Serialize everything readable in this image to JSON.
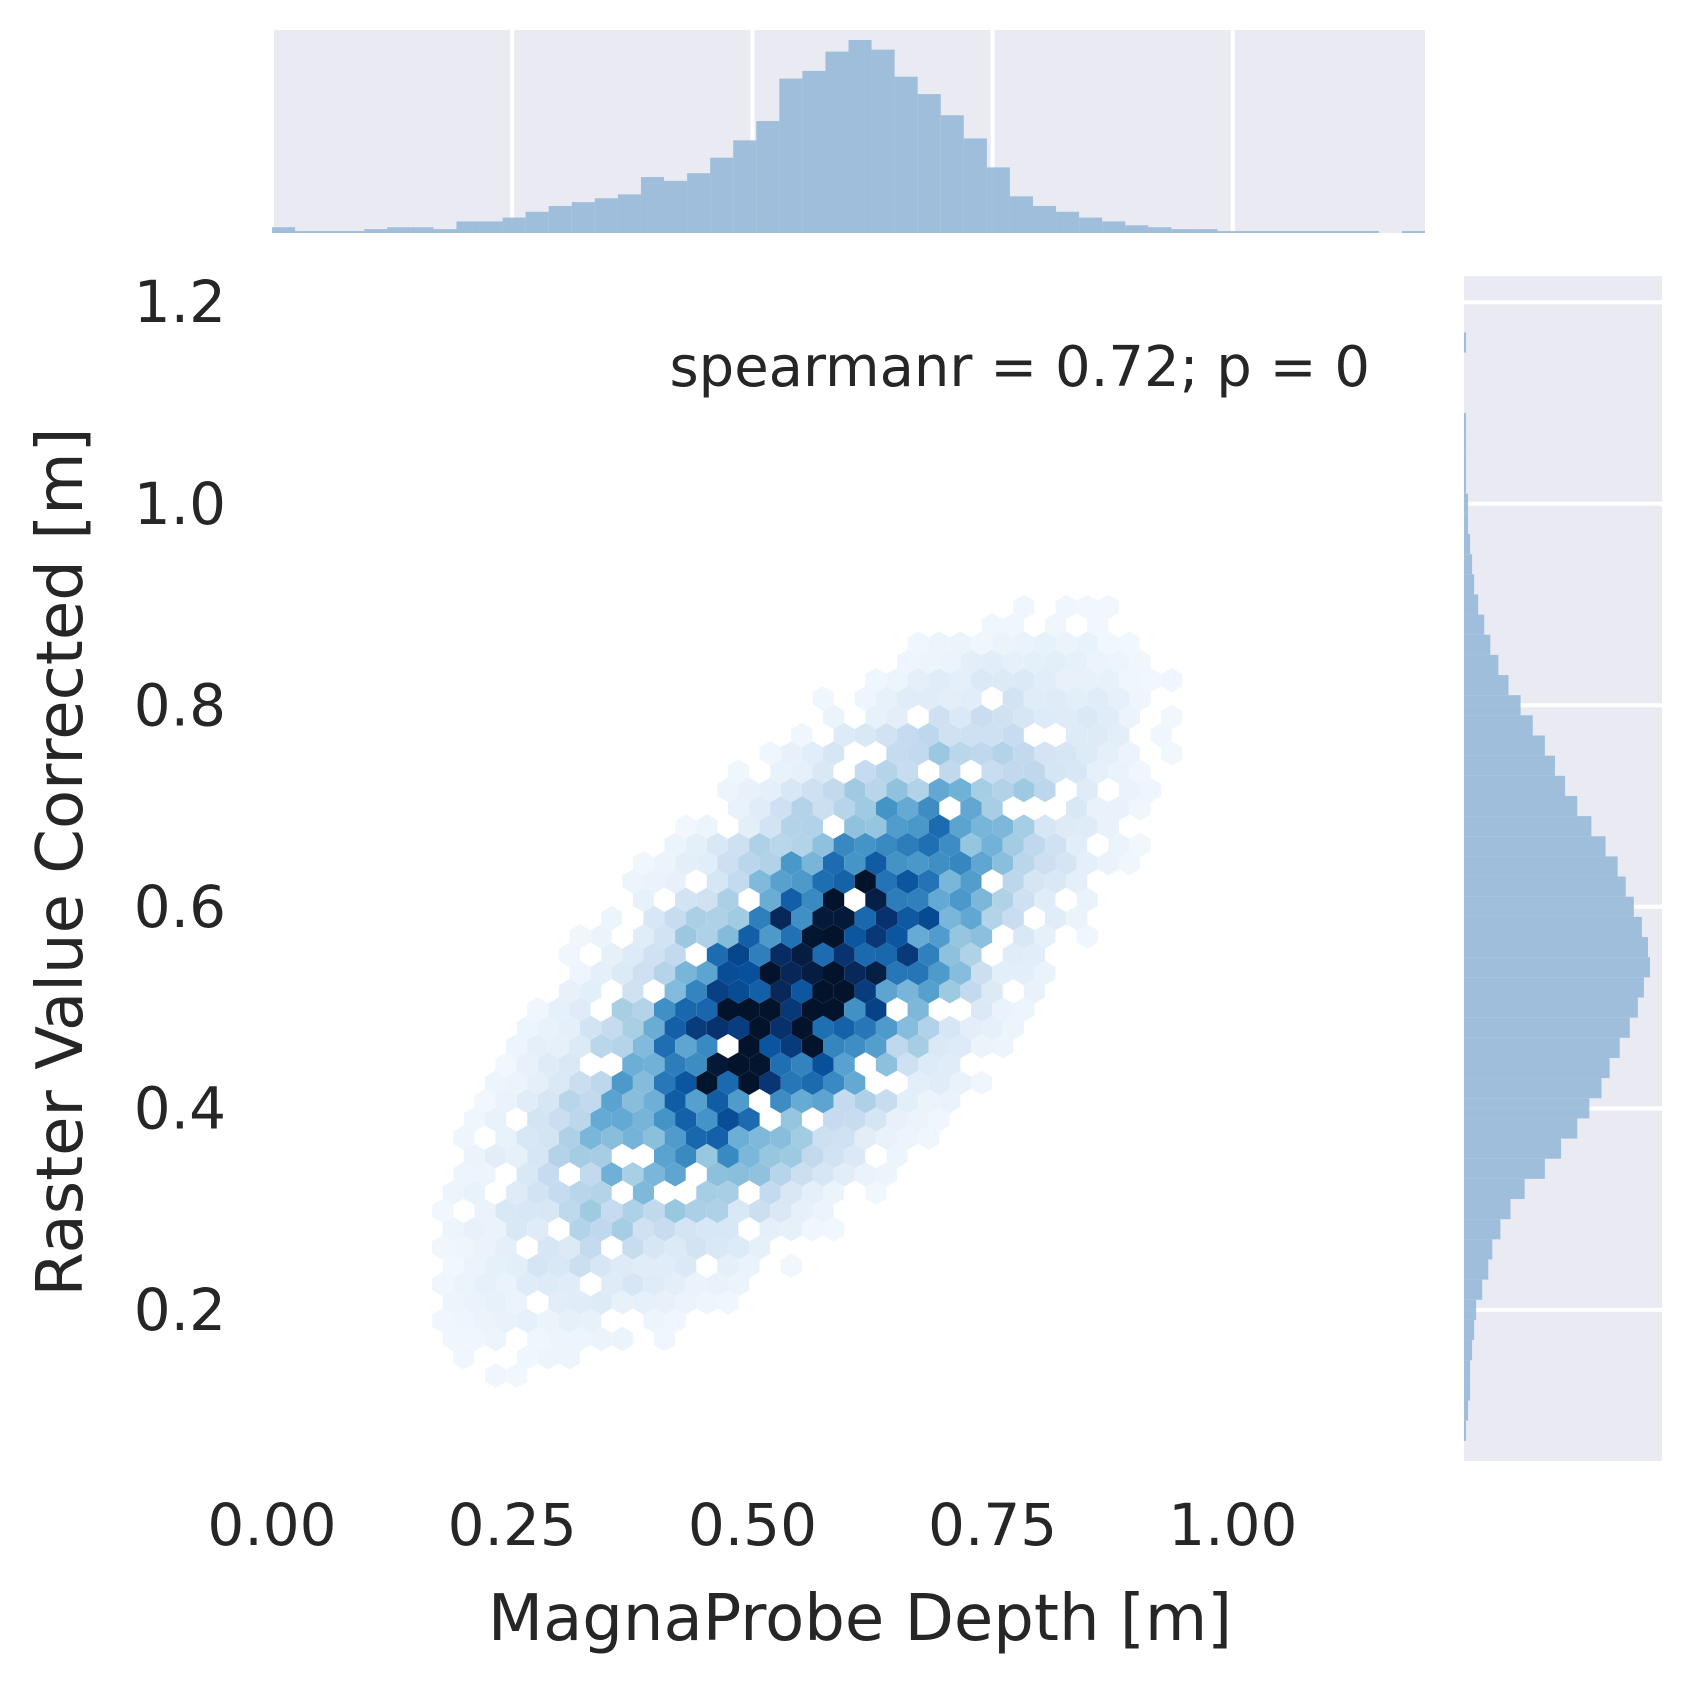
{
  "chart_data": {
    "type": "hexbin",
    "xlabel": "MagnaProbe Depth [m]",
    "ylabel": "Raster Value Corrected [m]",
    "annotation": "spearmanr = 0.72; p = 0",
    "xlim": [
      0.0,
      1.2
    ],
    "ylim": [
      0.05,
      1.23
    ],
    "x_ticks": [
      0.0,
      0.25,
      0.5,
      0.75,
      1.0
    ],
    "x_tick_labels": [
      "0.00",
      "0.25",
      "0.50",
      "0.75",
      "1.00"
    ],
    "y_ticks": [
      0.2,
      0.4,
      0.6,
      0.8,
      1.0,
      1.2
    ],
    "y_tick_labels": [
      "0.2",
      "0.4",
      "0.6",
      "0.8",
      "1.0",
      "1.2"
    ],
    "colormap": "Blues",
    "marginal_color": "#9bbcd9",
    "marginal_background": "#eaeaf2",
    "density_model": {
      "center": [
        0.55,
        0.52
      ],
      "sd": [
        0.16,
        0.16
      ],
      "correlation": 0.72
    },
    "marginal_x": {
      "bin_start": 0.0,
      "bin_width": 0.024,
      "counts": [
        3,
        1,
        1,
        1,
        2,
        3,
        3,
        2,
        6,
        6,
        8,
        11,
        14,
        16,
        18,
        20,
        29,
        27,
        31,
        39,
        48,
        58,
        80,
        84,
        94,
        100,
        95,
        81,
        72,
        61,
        49,
        34,
        19,
        14,
        11,
        8,
        6,
        4,
        3,
        2,
        2,
        1,
        1,
        1,
        1,
        1,
        1,
        1,
        0,
        1
      ]
    },
    "marginal_y": {
      "bin_start": 0.05,
      "bin_width": 0.02,
      "counts": [
        0,
        1,
        2,
        3,
        3,
        4,
        5,
        6,
        9,
        12,
        14,
        18,
        23,
        30,
        40,
        48,
        56,
        62,
        68,
        72,
        77,
        82,
        86,
        89,
        92,
        91,
        88,
        84,
        80,
        76,
        70,
        63,
        56,
        50,
        45,
        40,
        34,
        28,
        22,
        17,
        13,
        10,
        7,
        5,
        4,
        3,
        2,
        2,
        1,
        1,
        1,
        1,
        0,
        0,
        0,
        1,
        0,
        0,
        0
      ]
    }
  }
}
